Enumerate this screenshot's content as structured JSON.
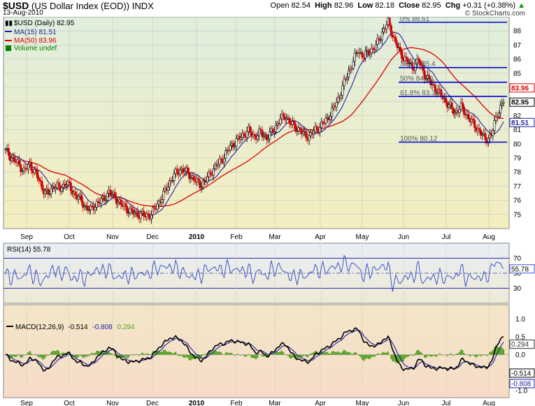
{
  "header": {
    "symbol": "$USD",
    "name": "(US Dollar Index (EOD))",
    "exchange": "INDX",
    "date": "13-Aug-2010",
    "open_label": "Open",
    "open": "82.54",
    "high_label": "High",
    "high": "82.96",
    "low_label": "Low",
    "low": "82.18",
    "close_label": "Close",
    "close": "82.95",
    "chg_label": "Chg",
    "chg": "+0.31 (+0.38%)",
    "logo": "© StockCharts.com",
    "trend_icon": "up-arrow-icon"
  },
  "chart_data": [
    {
      "type": "line",
      "panel": "price",
      "title": "$USD (Daily) 82.95",
      "legend": [
        {
          "label": "$USD (Daily) 82.95",
          "color": "#000000",
          "icon": "candlestick-icon"
        },
        {
          "label": "MA(15) 81.51",
          "color": "#2020a0",
          "icon": "line-icon"
        },
        {
          "label": "MA(50) 83.96",
          "color": "#dd0000",
          "icon": "line-icon"
        },
        {
          "label": "Volume undef",
          "color": "#008000",
          "icon": "bar-icon"
        }
      ],
      "x_months": [
        "Sep",
        "Oct",
        "Nov",
        "Dec",
        "2010",
        "Feb",
        "Mar",
        "Apr",
        "May",
        "Jun",
        "Jul",
        "Aug"
      ],
      "ylim": [
        74,
        89
      ],
      "yticks": [
        75,
        76,
        77,
        78,
        79,
        80,
        81,
        82,
        83,
        84,
        85,
        86,
        87,
        88
      ],
      "series": [
        {
          "name": "$USD",
          "color": "#000000",
          "close_points": [
            [
              0,
              79.5
            ],
            [
              1,
              79.0
            ],
            [
              2,
              78.6
            ],
            [
              3,
              78.1
            ],
            [
              4,
              78.5
            ],
            [
              5,
              77.9
            ],
            [
              6,
              76.9
            ],
            [
              7,
              76.4
            ],
            [
              8,
              77.1
            ],
            [
              9,
              76.8
            ],
            [
              10,
              77.3
            ],
            [
              11,
              76.6
            ],
            [
              12,
              76.2
            ],
            [
              13,
              75.6
            ],
            [
              14,
              75.3
            ],
            [
              15,
              75.8
            ],
            [
              16,
              76.0
            ],
            [
              17,
              76.6
            ],
            [
              18,
              76.2
            ],
            [
              19,
              75.7
            ],
            [
              20,
              75.4
            ],
            [
              21,
              75.1
            ],
            [
              22,
              75.0
            ],
            [
              23,
              74.9
            ],
            [
              24,
              75.0
            ],
            [
              25,
              75.7
            ],
            [
              26,
              76.4
            ],
            [
              27,
              77.3
            ],
            [
              28,
              77.9
            ],
            [
              29,
              78.2
            ],
            [
              30,
              77.9
            ],
            [
              31,
              77.5
            ],
            [
              32,
              77.1
            ],
            [
              33,
              77.4
            ],
            [
              34,
              78.1
            ],
            [
              35,
              78.6
            ],
            [
              36,
              79.1
            ],
            [
              37,
              79.8
            ],
            [
              38,
              80.2
            ],
            [
              39,
              80.6
            ],
            [
              40,
              80.9
            ],
            [
              41,
              80.5
            ],
            [
              42,
              80.8
            ],
            [
              43,
              80.4
            ],
            [
              44,
              80.9
            ],
            [
              45,
              81.6
            ],
            [
              46,
              82.0
            ],
            [
              47,
              81.4
            ],
            [
              48,
              81.1
            ],
            [
              49,
              80.7
            ],
            [
              50,
              80.5
            ],
            [
              51,
              81.0
            ],
            [
              52,
              81.3
            ],
            [
              53,
              81.8
            ],
            [
              54,
              82.5
            ],
            [
              55,
              83.4
            ],
            [
              56,
              84.6
            ],
            [
              57,
              85.6
            ],
            [
              58,
              86.6
            ],
            [
              59,
              86.2
            ],
            [
              60,
              86.6
            ],
            [
              61,
              86.9
            ],
            [
              62,
              87.9
            ],
            [
              63,
              88.6
            ],
            [
              64,
              87.4
            ],
            [
              65,
              86.4
            ],
            [
              66,
              85.9
            ],
            [
              67,
              85.4
            ],
            [
              68,
              85.9
            ],
            [
              69,
              84.9
            ],
            [
              70,
              84.3
            ],
            [
              71,
              83.8
            ],
            [
              72,
              83.3
            ],
            [
              73,
              82.7
            ],
            [
              74,
              82.2
            ],
            [
              75,
              82.6
            ],
            [
              76,
              82.0
            ],
            [
              77,
              81.4
            ],
            [
              78,
              80.9
            ],
            [
              79,
              80.3
            ],
            [
              80,
              80.6
            ],
            [
              81,
              82.2
            ],
            [
              82,
              82.95
            ]
          ]
        },
        {
          "name": "MA(15)",
          "color": "#2020a0",
          "value": "81.51"
        },
        {
          "name": "MA(50)",
          "color": "#dd0000",
          "value": "83.96"
        }
      ],
      "fibonacci": [
        {
          "label": "0% 88.61",
          "value": 88.61
        },
        {
          "label": "38.2% 85.4",
          "value": 85.4
        },
        {
          "label": "50% 84.36",
          "value": 84.36
        },
        {
          "label": "61.8% 83.36",
          "value": 83.36
        },
        {
          "label": "100% 80.12",
          "value": 80.12
        }
      ],
      "right_labels": [
        {
          "text": "83.96",
          "color": "#dd0000",
          "value": 83.96
        },
        {
          "text": "82.95",
          "color": "#000000",
          "value": 82.95
        },
        {
          "text": "81.51",
          "color": "#2020a0",
          "value": 81.51
        }
      ]
    },
    {
      "type": "line",
      "panel": "rsi",
      "title": "RSI(14) 55.78",
      "ylim": [
        10,
        90
      ],
      "yticks": [
        30,
        50,
        70
      ],
      "value_label": "55.78",
      "value": 55.78,
      "color": "#3b55c9",
      "overbought": 70,
      "oversold": 30
    },
    {
      "type": "line",
      "panel": "macd",
      "legend": [
        {
          "label": "MACD(12,26,9)",
          "value": "-0.514",
          "color": "#000000"
        },
        {
          "label": "",
          "value": "-0.808",
          "color": "#2020a0"
        },
        {
          "label": "",
          "value": "0.294",
          "color": "#55aa22"
        }
      ],
      "ylim": [
        -1.2,
        1.4
      ],
      "yticks": [
        "1.0",
        "0.5",
        "0.0",
        "-0.5",
        "-1.0"
      ],
      "right_labels": [
        {
          "text": "0.294",
          "color": "#333333",
          "value": 0.294
        },
        {
          "text": "-0.514",
          "color": "#000000",
          "value": -0.514
        },
        {
          "text": "-0.808",
          "color": "#2020a0",
          "value": -0.808
        }
      ]
    }
  ]
}
